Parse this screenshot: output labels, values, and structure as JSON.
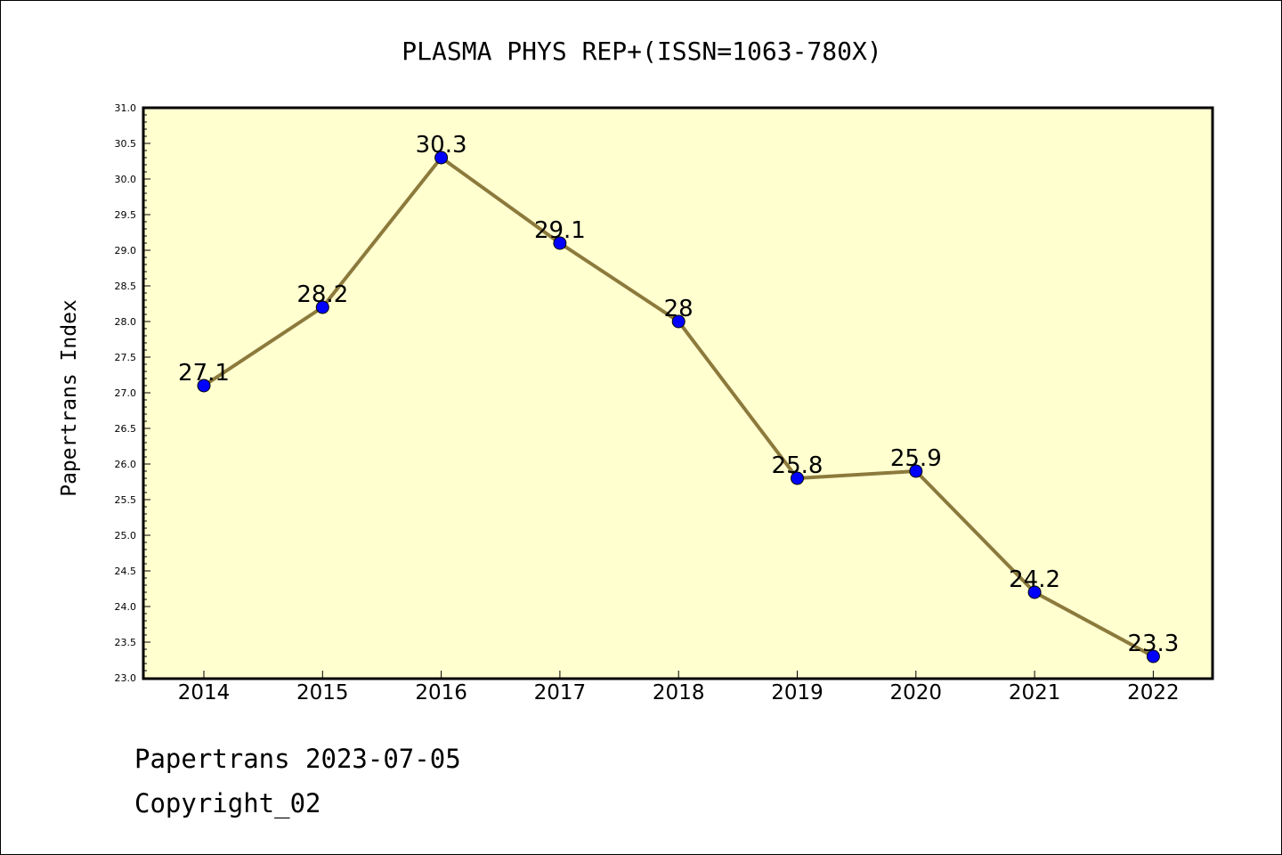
{
  "chart_data": {
    "type": "line",
    "title": "PLASMA PHYS REP+(ISSN=1063-780X)",
    "ylabel": "Papertrans Index",
    "xlabel": "",
    "categories": [
      "2014",
      "2015",
      "2016",
      "2017",
      "2018",
      "2019",
      "2020",
      "2021",
      "2022"
    ],
    "series": [
      {
        "values": [
          27.1,
          28.2,
          30.3,
          29.1,
          28,
          25.8,
          25.9,
          24.2,
          23.3
        ],
        "data_labels": [
          "27.1",
          "28.2",
          "30.3",
          "29.1",
          "28",
          "25.8",
          "25.9",
          "24.2",
          "23.3"
        ],
        "line_color": "#8c7a3c",
        "marker_color": "#0000ff"
      }
    ],
    "ylim": [
      23.0,
      31.0
    ],
    "y_ticks": [
      "23.0",
      "23.5",
      "24.0",
      "24.5",
      "25.0",
      "25.5",
      "26.0",
      "26.5",
      "27.0",
      "27.5",
      "28.0",
      "28.5",
      "29.0",
      "29.5",
      "30.0",
      "30.5",
      "31.0"
    ],
    "grid": false,
    "plot_background": "#ffffd0"
  },
  "footer": {
    "line1": "Papertrans 2023-07-05",
    "line2": "Copyright_02"
  }
}
